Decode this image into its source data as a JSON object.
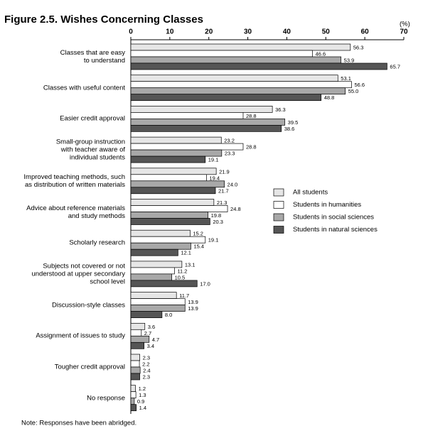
{
  "chart_data": {
    "type": "bar",
    "orientation": "horizontal",
    "title": "Figure 2.5. Wishes Concerning Classes",
    "unit_label": "(%)",
    "note": "Note: Responses have been abridged.",
    "categories": [
      "Classes that are easy\nto understand",
      "Classes with useful content",
      "Easier credit approval",
      "Small-group instruction\nwith teacher aware of\nindividual students",
      "Improved teaching methods, such\nas distribution of written materials",
      "Advice about reference materials\nand study methods",
      "Scholarly research",
      "Subjects not covered or not\nunderstood at upper secondary\nschool level",
      "Discussion-style classes",
      "Assignment of issues to study",
      "Tougher credit approval",
      "No response"
    ],
    "series": [
      {
        "name": "All students",
        "color": "#e6e6e6",
        "values": [
          56.3,
          53.1,
          36.3,
          23.2,
          21.9,
          21.3,
          15.2,
          13.1,
          11.7,
          3.6,
          2.3,
          1.2
        ],
        "value_labels": [
          "56.3",
          "53.1",
          "36.3",
          "23.2",
          "21.9",
          "21.3",
          "15.2",
          "13.1",
          "11.7",
          "3.6",
          "2.3",
          "1.2"
        ]
      },
      {
        "name": "Students in humanities",
        "color": "#ffffff",
        "values": [
          46.6,
          56.6,
          28.8,
          28.8,
          19.4,
          24.8,
          19.1,
          11.2,
          13.9,
          2.7,
          2.2,
          1.3
        ],
        "value_labels": [
          "46.6",
          "56.6",
          "28.8",
          "28.8",
          "19.4",
          "24.8",
          "19.1",
          "11.2",
          "13.9",
          "2.7",
          "2.2",
          "1.3"
        ]
      },
      {
        "name": "Students in social sciences",
        "color": "#a8a8a8",
        "values": [
          53.9,
          55.0,
          39.5,
          23.3,
          24.0,
          19.8,
          15.4,
          10.5,
          13.9,
          4.7,
          2.4,
          0.9
        ],
        "value_labels": [
          "53.9",
          "55.0",
          "39.5",
          "23.3",
          "24.0",
          "19.8",
          "15.4",
          "10.5",
          "13.9",
          "4.7",
          "2.4",
          "0.9"
        ]
      },
      {
        "name": "Students in natural sciences",
        "color": "#555555",
        "values": [
          65.7,
          48.8,
          38.6,
          19.1,
          21.7,
          20.3,
          12.1,
          17.0,
          8.0,
          3.4,
          2.3,
          1.4
        ],
        "value_labels": [
          "65.7",
          "48.8",
          "38.6",
          "19.1",
          "21.7",
          "20.3",
          "12.1",
          "17.0",
          "8.0",
          "3.4",
          "2.3",
          "1.4"
        ]
      }
    ],
    "xlim": [
      0,
      70
    ],
    "xticks": [
      0,
      10,
      20,
      30,
      40,
      50,
      60,
      70
    ],
    "legend": "right"
  }
}
